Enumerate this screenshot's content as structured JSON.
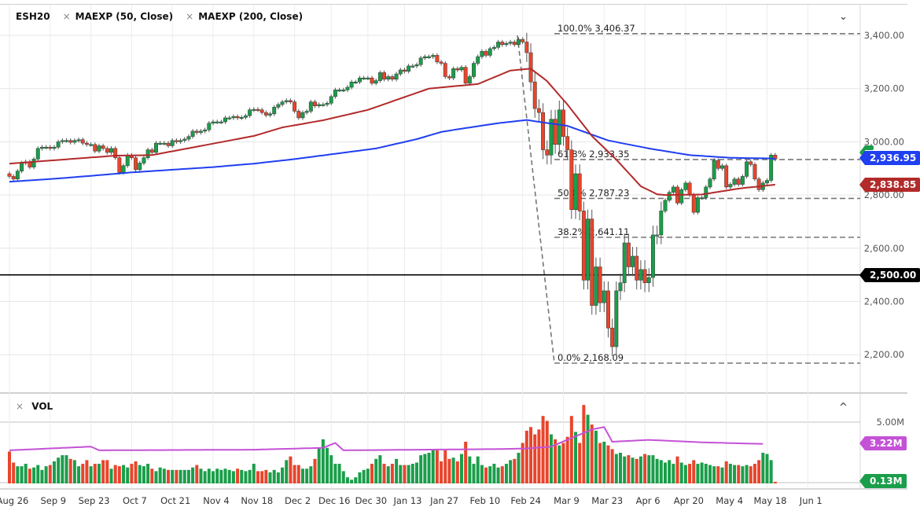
{
  "legend": {
    "symbol": "ESH20",
    "studies": [
      "MAEXP (50, Close)",
      "MAEXP (200, Close)"
    ],
    "close_glyph": "×"
  },
  "volume_pane": {
    "label": "VOL",
    "close_glyph": "×",
    "collapse_glyph": "^",
    "axis_label": "5.00M",
    "avg_tag": "3.22M",
    "last_tag": "0.13M"
  },
  "price_pane": {
    "menu_glyph": "⌄"
  },
  "tags": {
    "ema200": "2,936.95",
    "ema50": "2,838.85",
    "hline": "2,500.00"
  },
  "colors": {
    "up": "#1a9e4a",
    "down": "#e8452c",
    "ema50": "#b22a2a",
    "ema200": "#1f3ff0",
    "vol_ma": "#c452d6",
    "hline": "#000000",
    "fib": "#777777"
  },
  "chart_data": [
    {
      "type": "candlestick",
      "ylim": [
        2120,
        3460
      ],
      "y_ticks": [
        "3,400.00",
        "3,200.00",
        "3,000.00",
        "2,800.00",
        "2,600.00",
        "2,400.00",
        "2,200.00"
      ],
      "y_tick_values": [
        3400,
        3200,
        3000,
        2800,
        2600,
        2400,
        2200
      ],
      "x_ticks": [
        "Aug 26",
        "Sep 9",
        "Sep 23",
        "Oct 7",
        "Oct 21",
        "Nov 4",
        "Nov 18",
        "Dec 2",
        "Dec 16",
        "Dec 30",
        "Jan 13",
        "Jan 27",
        "Feb 10",
        "Feb 24",
        "Mar 9",
        "Mar 23",
        "Apr 6",
        "Apr 20",
        "May 4",
        "May 18",
        "Jun 1"
      ],
      "x_tick_index": [
        0,
        10,
        20,
        30,
        40,
        50,
        60,
        70,
        79,
        88,
        97,
        106,
        116,
        126,
        136,
        146,
        156,
        166,
        176,
        186,
        196
      ],
      "close": [
        2870,
        2860,
        2890,
        2920,
        2925,
        2905,
        2935,
        2975,
        2980,
        2980,
        2975,
        2980,
        3000,
        3005,
        3005,
        2998,
        3005,
        3008,
        2995,
        2990,
        2990,
        2965,
        2985,
        2975,
        2960,
        2975,
        2940,
        2885,
        2910,
        2950,
        2940,
        2895,
        2920,
        2940,
        2970,
        2960,
        2995,
        2995,
        2995,
        2985,
        3005,
        3000,
        3005,
        3010,
        3020,
        3040,
        3035,
        3040,
        3045,
        3070,
        3075,
        3075,
        3075,
        3090,
        3090,
        3095,
        3090,
        3092,
        3098,
        3120,
        3122,
        3120,
        3110,
        3100,
        3105,
        3130,
        3140,
        3150,
        3155,
        3150,
        3115,
        3090,
        3110,
        3115,
        3150,
        3135,
        3140,
        3140,
        3145,
        3170,
        3195,
        3195,
        3195,
        3205,
        3225,
        3225,
        3240,
        3240,
        3240,
        3220,
        3230,
        3260,
        3235,
        3245,
        3235,
        3255,
        3270,
        3265,
        3285,
        3285,
        3290,
        3315,
        3320,
        3320,
        3325,
        3300,
        3295,
        3245,
        3240,
        3275,
        3270,
        3280,
        3220,
        3245,
        3295,
        3320,
        3340,
        3325,
        3350,
        3355,
        3375,
        3365,
        3370,
        3375,
        3365,
        3385,
        3375,
        3335,
        3225,
        3125,
        3110,
        2970,
        2950,
        3085,
        2990,
        3120,
        3020,
        2970,
        2745,
        2880,
        2740,
        2480,
        2710,
        2385,
        2530,
        2395,
        2440,
        2300,
        2230,
        2440,
        2470,
        2620,
        2530,
        2570,
        2480,
        2520,
        2470,
        2490,
        2650,
        2650,
        2740,
        2780,
        2810,
        2830,
        2770,
        2820,
        2845,
        2800,
        2735,
        2790,
        2790,
        2830,
        2860,
        2930,
        2900,
        2910,
        2830,
        2840,
        2860,
        2840,
        2870,
        2925,
        2915,
        2860,
        2820,
        2845,
        2855,
        2950,
        2935
      ],
      "ema50": {
        "index": [
          0,
          26,
          35,
          60,
          67,
          77,
          88,
          103,
          115,
          123,
          128,
          132,
          137,
          143,
          149,
          155,
          159,
          161,
          170,
          179,
          188
        ],
        "value": [
          2918,
          2948,
          2950,
          3022,
          3054,
          3081,
          3120,
          3200,
          3217,
          3268,
          3275,
          3228,
          3140,
          3022,
          2933,
          2833,
          2803,
          2800,
          2802,
          2824,
          2839
        ]
      },
      "ema200": {
        "index": [
          0,
          10,
          20,
          30,
          40,
          50,
          60,
          70,
          80,
          90,
          100,
          106,
          110,
          120,
          127,
          130,
          137,
          147,
          157,
          167,
          177,
          188
        ],
        "value": [
          2850,
          2860,
          2872,
          2885,
          2895,
          2905,
          2918,
          2935,
          2955,
          2975,
          3010,
          3037,
          3047,
          3070,
          3082,
          3075,
          3060,
          3005,
          2975,
          2950,
          2940,
          2937
        ]
      },
      "horizontal_line": 2500,
      "fibonacci": {
        "levels": [
          {
            "label": "100.0% 3,406.37",
            "value": 3406.37
          },
          {
            "label": "61.8% 2,933.35",
            "value": 2933.35
          },
          {
            "label": "50.0% 2,787.23",
            "value": 2787.23
          },
          {
            "label": "38.2% 2,641.11",
            "value": 2641.11
          },
          {
            "label": "0.0% 2,168.09",
            "value": 2168.09
          }
        ]
      }
    },
    {
      "type": "bar",
      "ylabel": "",
      "ylim": [
        0,
        6.8
      ],
      "values": [
        2.6,
        1.7,
        1.4,
        1.4,
        1.6,
        1.2,
        1.3,
        1.5,
        1.1,
        1.4,
        1.5,
        1.8,
        2.1,
        2.3,
        2.3,
        2.0,
        1.9,
        1.4,
        1.6,
        1.9,
        1.4,
        1.6,
        1.6,
        1.9,
        1.9,
        1.2,
        1.5,
        1.4,
        1.5,
        1.3,
        1.6,
        1.8,
        1.5,
        1.4,
        1.6,
        1.2,
        1.0,
        1.3,
        1.2,
        1.1,
        1.1,
        1.1,
        1.1,
        1.1,
        1.1,
        1.3,
        1.5,
        1.2,
        1.0,
        1.2,
        1.0,
        1.2,
        1.1,
        1.2,
        1.1,
        1.0,
        1.2,
        1.1,
        1.0,
        1.1,
        1.6,
        1.0,
        1.0,
        1.1,
        0.9,
        1.1,
        0.9,
        1.3,
        1.9,
        2.2,
        1.5,
        1.5,
        1.2,
        1.2,
        1.4,
        2.0,
        2.9,
        3.6,
        2.9,
        2.3,
        1.6,
        1.6,
        1.0,
        0.5,
        0.3,
        0.5,
        0.9,
        1.1,
        1.2,
        1.6,
        2.0,
        2.3,
        1.6,
        1.4,
        1.6,
        2.0,
        1.5,
        1.5,
        1.5,
        1.6,
        1.7,
        2.3,
        2.4,
        2.5,
        2.7,
        2.7,
        1.8,
        2.7,
        2.0,
        2.1,
        1.8,
        2.4,
        3.4,
        2.2,
        1.6,
        2.2,
        1.5,
        1.3,
        1.4,
        1.6,
        1.3,
        1.4,
        1.6,
        1.9,
        2.0,
        2.5,
        3.3,
        4.3,
        4.6,
        4.0,
        4.4,
        5.5,
        5.1,
        4.0,
        3.6,
        3.1,
        3.3,
        3.8,
        5.5,
        4.2,
        3.3,
        6.4,
        5.6,
        4.8,
        4.3,
        3.3,
        3.4,
        3.1,
        2.8,
        2.4,
        2.5,
        2.2,
        2.3,
        2.1,
        2.0,
        2.2,
        2.4,
        2.3,
        2.3,
        2.0,
        1.9,
        1.7,
        1.9,
        1.6,
        2.2,
        1.7,
        1.5,
        1.6,
        1.9,
        1.6,
        1.7,
        1.6,
        1.5,
        1.4,
        1.4,
        1.3,
        1.8,
        1.6,
        1.5,
        1.5,
        1.4,
        1.5,
        1.4,
        1.6,
        1.9,
        2.5,
        2.4,
        1.9,
        0.13
      ],
      "unit": "M",
      "moving_average": {
        "index": [
          0,
          20,
          22,
          60,
          77,
          80,
          82,
          120,
          127,
          133,
          143,
          146,
          148,
          157,
          170,
          185
        ],
        "value": [
          2.7,
          3.0,
          2.7,
          2.75,
          2.9,
          3.3,
          2.7,
          2.8,
          2.85,
          3.0,
          4.4,
          4.6,
          3.4,
          3.55,
          3.35,
          3.22
        ]
      }
    }
  ]
}
